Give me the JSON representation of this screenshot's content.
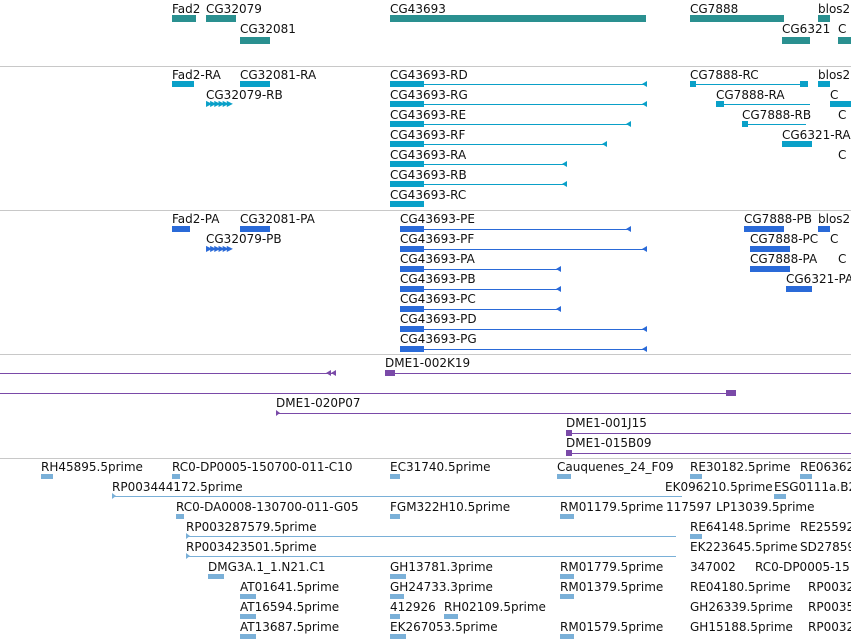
{
  "colors": {
    "gene": "#2a9090",
    "transcript": "#0aa0c8",
    "protein": "#2a6ad8",
    "clone": "#7a4aa8",
    "est": "#7ab0d8",
    "divider": "#c8c8c8"
  },
  "genes": [
    "Fad2",
    "CG32079",
    "CG43693",
    "CG7888",
    "blos2",
    "CG32081",
    "CG6321",
    "C"
  ],
  "transcripts": [
    "Fad2-RA",
    "CG32081-RA",
    "CG43693-RD",
    "CG7888-RC",
    "blos2",
    "CG32079-RB",
    "CG43693-RG",
    "CG7888-RA",
    "C",
    "CG43693-RE",
    "CG7888-RB",
    "C",
    "CG43693-RF",
    "CG6321-RA",
    "CG43693-RA",
    "C",
    "CG43693-RB",
    "CG43693-RC"
  ],
  "proteins": [
    "Fad2-PA",
    "CG32081-PA",
    "CG43693-PE",
    "CG7888-PB",
    "blos2",
    "CG32079-PB",
    "CG43693-PF",
    "CG7888-PC",
    "C",
    "CG43693-PA",
    "CG7888-PA",
    "C",
    "CG43693-PB",
    "CG6321-PA",
    "CG43693-PC",
    "CG43693-PD",
    "CG43693-PG"
  ],
  "clones": [
    "DME1-002K19",
    "DME1-020P07",
    "DME1-001J15",
    "DME1-015B09"
  ],
  "ests": [
    "RH45895.5prime",
    "RC0-DP0005-150700-011-C10",
    "EC31740.5prime",
    "Cauquenes_24_F09",
    "RE30182.5prime",
    "RE06362",
    "RP003444172.5prime",
    "EK096210.5prime",
    "ESG0111a.B2",
    "RC0-DA0008-130700-011-G05",
    "FGM322H10.5prime",
    "RM01179.5prime",
    "117597",
    "LP13039.5prime",
    "RP003287579.5prime",
    "RE64148.5prime",
    "RE25592",
    "RP003423501.5prime",
    "EK223645.5prime",
    "SD27859",
    "DMG3A.1_1.N21.C1",
    "GH13781.3prime",
    "RM01779.5prime",
    "347002",
    "RC0-DP0005-15",
    "AT01641.5prime",
    "GH24733.3prime",
    "RM01379.5prime",
    "RE04180.5prime",
    "RP0032",
    "412926",
    "RH02109.5prime",
    "AT16594.5prime",
    "GH26339.5prime",
    "RP0035",
    "AT13687.5prime",
    "EK267053.5prime",
    "RM01579.5prime",
    "GH15188.5prime",
    "RP0032"
  ]
}
